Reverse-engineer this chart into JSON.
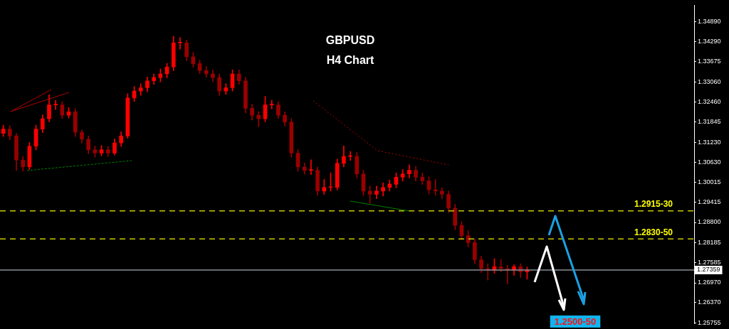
{
  "chart_data": {
    "type": "candlestick",
    "title": "GBPUSD",
    "subtitle": "H4 Chart",
    "colors": [
      "#ff0000",
      "#990000",
      "#990000",
      "#990000",
      "#ff0000",
      "#ff0000",
      "#ff0000",
      "#ff0000",
      "#ff0000",
      "#990000",
      "#ff0000",
      "#990000",
      "#990000",
      "#990000",
      "#990000",
      "#ff0000",
      "#990000",
      "#ff0000",
      "#ff0000",
      "#ff0000",
      "#ff0000",
      "#ff0000",
      "#ff0000",
      "#ff0000",
      "#ff0000",
      "#ff0000",
      "#ff0000",
      "#ff0000",
      "#990000",
      "#990000",
      "#990000",
      "#990000",
      "#990000",
      "#990000",
      "#ff0000",
      "#ff0000",
      "#990000",
      "#990000",
      "#990000",
      "#990000",
      "#ff0000",
      "#ff0000",
      "#990000",
      "#990000",
      "#990000",
      "#990000",
      "#990000",
      "#ff0000",
      "#990000",
      "#ff0000",
      "#ff0000",
      "#ff0000",
      "#ff0000",
      "#ff0000",
      "#990000",
      "#990000",
      "#990000",
      "#ff0000",
      "#ff0000",
      "#ff0000",
      "#ff0000",
      "#ff0000",
      "#ff0000",
      "#990000",
      "#990000",
      "#990000",
      "#990000",
      "#990000",
      "#990000",
      "#990000",
      "#990000",
      "#990000",
      "#990000",
      "#990000",
      "#990000",
      "#ff0000",
      "#990000",
      "#990000",
      "#ff0000",
      "#990000",
      "#ff0000",
      null,
      null,
      null,
      null,
      null,
      null,
      null,
      null,
      null,
      null,
      null,
      null,
      null,
      null,
      null,
      null,
      null,
      null,
      null,
      null,
      null,
      null,
      null,
      null,
      null
    ],
    "categories": [
      null,
      null,
      null,
      null,
      null,
      null,
      null,
      null,
      null,
      null,
      null,
      null,
      null,
      null,
      null,
      null,
      null,
      null,
      null,
      null,
      null,
      null,
      null,
      null,
      null,
      null,
      null,
      null,
      null,
      null,
      null,
      null,
      null,
      null,
      null,
      null,
      null,
      null,
      null,
      null,
      null,
      null,
      null,
      null,
      null,
      null,
      null,
      null,
      null,
      null,
      null,
      null,
      null,
      null,
      null,
      null,
      null,
      null,
      null,
      null,
      null,
      null,
      null,
      null,
      null,
      null,
      null,
      null,
      null,
      null,
      null,
      null,
      null,
      null,
      null,
      null,
      null,
      null,
      null,
      null,
      null,
      null,
      null,
      null,
      null,
      null,
      null,
      null,
      null,
      null,
      null,
      null,
      null,
      null,
      null,
      null,
      null,
      null,
      null,
      null,
      null,
      null,
      null,
      null,
      null,
      null
    ],
    "ohlc": [
      [
        1.315,
        1.3175,
        1.314,
        1.3163
      ],
      [
        1.3163,
        1.3173,
        1.313,
        1.3142
      ],
      [
        1.3142,
        1.315,
        1.3038,
        1.3069
      ],
      [
        1.3069,
        1.308,
        1.3036,
        1.3048
      ],
      [
        1.3048,
        1.3122,
        1.304,
        1.3111
      ],
      [
        1.3111,
        1.3175,
        1.31,
        1.3163
      ],
      [
        1.3163,
        1.3206,
        1.3152,
        1.3194
      ],
      [
        1.3194,
        1.3267,
        1.3185,
        1.3236
      ],
      [
        1.3236,
        1.325,
        1.3222,
        1.3236
      ],
      [
        1.3236,
        1.3246,
        1.3195,
        1.3205
      ],
      [
        1.3205,
        1.3228,
        1.3196,
        1.3215
      ],
      [
        1.3215,
        1.3225,
        1.314,
        1.3153
      ],
      [
        1.3153,
        1.316,
        1.312,
        1.3132
      ],
      [
        1.3132,
        1.3142,
        1.3088,
        1.31
      ],
      [
        1.31,
        1.3112,
        1.3078,
        1.309
      ],
      [
        1.309,
        1.3113,
        1.3082,
        1.31
      ],
      [
        1.31,
        1.311,
        1.308,
        1.309
      ],
      [
        1.309,
        1.3133,
        1.3084,
        1.3121
      ],
      [
        1.3121,
        1.3155,
        1.311,
        1.3142
      ],
      [
        1.3142,
        1.327,
        1.3135,
        1.3257
      ],
      [
        1.3257,
        1.3292,
        1.3246,
        1.3278
      ],
      [
        1.3278,
        1.33,
        1.3265,
        1.3288
      ],
      [
        1.3288,
        1.332,
        1.3276,
        1.3309
      ],
      [
        1.3309,
        1.333,
        1.3298,
        1.3319
      ],
      [
        1.3319,
        1.3345,
        1.3306,
        1.333
      ],
      [
        1.333,
        1.3362,
        1.3318,
        1.3351
      ],
      [
        1.3351,
        1.3444,
        1.334,
        1.3424
      ],
      [
        1.3424,
        1.344,
        1.3405,
        1.3424
      ],
      [
        1.3424,
        1.3432,
        1.337,
        1.3382
      ],
      [
        1.3382,
        1.3395,
        1.335,
        1.3361
      ],
      [
        1.3361,
        1.3372,
        1.333,
        1.334
      ],
      [
        1.334,
        1.3352,
        1.332,
        1.333
      ],
      [
        1.333,
        1.3342,
        1.3306,
        1.3319
      ],
      [
        1.3319,
        1.333,
        1.3265,
        1.3278
      ],
      [
        1.3278,
        1.33,
        1.3268,
        1.3288
      ],
      [
        1.3288,
        1.3342,
        1.3278,
        1.333
      ],
      [
        1.333,
        1.3342,
        1.3298,
        1.3309
      ],
      [
        1.3309,
        1.332,
        1.3212,
        1.3226
      ],
      [
        1.3226,
        1.3238,
        1.319,
        1.3205
      ],
      [
        1.3205,
        1.3216,
        1.317,
        1.3194
      ],
      [
        1.3194,
        1.3262,
        1.3185,
        1.3236
      ],
      [
        1.3236,
        1.325,
        1.3224,
        1.3236
      ],
      [
        1.3236,
        1.3246,
        1.3195,
        1.3205
      ],
      [
        1.3205,
        1.3215,
        1.3172,
        1.3184
      ],
      [
        1.3184,
        1.3195,
        1.3078,
        1.309
      ],
      [
        1.309,
        1.31,
        1.3035,
        1.3048
      ],
      [
        1.3048,
        1.306,
        1.3026,
        1.3038
      ],
      [
        1.3038,
        1.307,
        1.3025,
        1.3038
      ],
      [
        1.3038,
        1.3048,
        1.2962,
        1.2975
      ],
      [
        1.2975,
        1.301,
        1.2965,
        1.2986
      ],
      [
        1.2986,
        1.303,
        1.2975,
        1.2986
      ],
      [
        1.2986,
        1.3072,
        1.2978,
        1.3059
      ],
      [
        1.3059,
        1.3112,
        1.3048,
        1.308
      ],
      [
        1.308,
        1.3095,
        1.3068,
        1.308
      ],
      [
        1.308,
        1.3092,
        1.3015,
        1.3027
      ],
      [
        1.3027,
        1.3038,
        1.2962,
        1.2975
      ],
      [
        1.2975,
        1.299,
        1.2938,
        1.2965
      ],
      [
        1.2965,
        1.299,
        1.2952,
        1.2975
      ],
      [
        1.2975,
        1.3,
        1.296,
        1.2986
      ],
      [
        1.2986,
        1.3008,
        1.2975,
        1.2996
      ],
      [
        1.2996,
        1.303,
        1.2985,
        1.3017
      ],
      [
        1.3017,
        1.304,
        1.3005,
        1.3027
      ],
      [
        1.3027,
        1.3055,
        1.3015,
        1.3038
      ],
      [
        1.3038,
        1.305,
        1.3005,
        1.3017
      ],
      [
        1.3017,
        1.303,
        1.2995,
        1.3006
      ],
      [
        1.3006,
        1.3018,
        1.2966,
        1.2979
      ],
      [
        1.2979,
        1.301,
        1.2962,
        1.2975
      ],
      [
        1.2975,
        1.2985,
        1.2952,
        1.2965
      ],
      [
        1.2965,
        1.2975,
        1.291,
        1.2923
      ],
      [
        1.2923,
        1.2935,
        1.2858,
        1.2871
      ],
      [
        1.2871,
        1.2882,
        1.2828,
        1.284
      ],
      [
        1.284,
        1.2855,
        1.2806,
        1.2819
      ],
      [
        1.2819,
        1.283,
        1.2755,
        1.2767
      ],
      [
        1.2767,
        1.2778,
        1.2728,
        1.274
      ],
      [
        1.274,
        1.2755,
        1.2705,
        1.2735
      ],
      [
        1.2735,
        1.277,
        1.2725,
        1.2746
      ],
      [
        1.2746,
        1.2768,
        1.273,
        1.274
      ],
      [
        1.274,
        1.275,
        1.2694,
        1.2735
      ],
      [
        1.2735,
        1.2752,
        1.272,
        1.2746
      ],
      [
        1.2746,
        1.2755,
        1.2712,
        1.273
      ],
      [
        1.273,
        1.2745,
        1.2708,
        1.2735
      ],
      null,
      null,
      null,
      null,
      null,
      null,
      null,
      null,
      null,
      null,
      null,
      null,
      null,
      null,
      null,
      null,
      null,
      null,
      null,
      null,
      null,
      null,
      null,
      null,
      null
    ],
    "ylim": [
      1.2573,
      1.3538
    ],
    "yticks": [
      {
        "value": 1.25755,
        "label": "1.25755"
      },
      {
        "value": 1.2637,
        "label": "1.26370"
      },
      {
        "value": 1.2697,
        "label": "1.26970"
      },
      {
        "value": 1.27585,
        "label": "1.27585"
      },
      {
        "value": 1.28185,
        "label": "1.28185"
      },
      {
        "value": 1.288,
        "label": "1.28800"
      },
      {
        "value": 1.29415,
        "label": "1.29415"
      },
      {
        "value": 1.30015,
        "label": "1.30015"
      },
      {
        "value": 1.3063,
        "label": "1.30630"
      },
      {
        "value": 1.3123,
        "label": "1.31230"
      },
      {
        "value": 1.31845,
        "label": "1.31845"
      },
      {
        "value": 1.3246,
        "label": "1.32460"
      },
      {
        "value": 1.3306,
        "label": "1.33060"
      },
      {
        "value": 1.33675,
        "label": "1.33675"
      },
      {
        "value": 1.3429,
        "label": "1.34290"
      },
      {
        "value": 1.3489,
        "label": "1.34890"
      }
    ],
    "tick_labels": "y",
    "grid": false,
    "legend": false,
    "ref_lines": [
      {
        "axis": "y",
        "value": 1.2915,
        "label": "1.2915-30",
        "color": "#c8c800",
        "line_style": "dashed"
      },
      {
        "axis": "y",
        "value": 1.283,
        "label": "1.2830-50",
        "color": "#c8c800",
        "line_style": "dashed"
      },
      {
        "axis": "y",
        "value": 1.27359,
        "label": "1.27359",
        "color": "#8a9099",
        "line_style": "solid"
      }
    ],
    "annotations": [
      "1.2500-50"
    ]
  }
}
